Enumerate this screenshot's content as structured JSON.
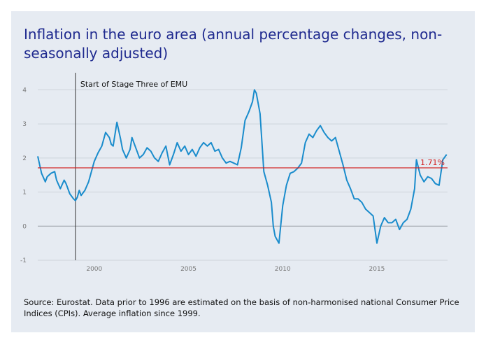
{
  "chart_data": {
    "type": "line",
    "title": "Inflation in the euro area (annual percentage changes, non-seasonally adjusted)",
    "source": "Source: Eurostat. Data prior to 1996 are estimated on the basis of non-harmonised national Consumer Price Indices (CPIs). Average inflation since 1999.",
    "xlim": [
      1997.0,
      2018.75
    ],
    "ylim": [
      -1,
      4.5
    ],
    "x_ticks": [
      2000,
      2005,
      2010,
      2015
    ],
    "x_tick_labels": [
      "2000",
      "2005",
      "2010",
      "2015"
    ],
    "y_ticks": [
      -1,
      0,
      1,
      2,
      3,
      4
    ],
    "y_tick_labels": [
      "-1",
      "0",
      "1",
      "2",
      "3",
      "4"
    ],
    "grid": true,
    "vertical_marker": {
      "x": 1999.0,
      "label": "Start of Stage Three of EMU"
    },
    "average_line": {
      "value": 1.71,
      "label": "1.71%",
      "color": "#d11a1a"
    },
    "series": [
      {
        "color": "#1a8ccc",
        "x": [
          1997.0,
          1997.2,
          1997.4,
          1997.5,
          1997.7,
          1997.9,
          1998.0,
          1998.2,
          1998.4,
          1998.5,
          1998.7,
          1998.9,
          1999.0,
          1999.1,
          1999.2,
          1999.3,
          1999.5,
          1999.7,
          1999.9,
          2000.0,
          2000.2,
          2000.4,
          2000.6,
          2000.8,
          2000.9,
          2001.0,
          2001.2,
          2001.4,
          2001.5,
          2001.7,
          2001.9,
          2002.0,
          2002.2,
          2002.4,
          2002.6,
          2002.8,
          2003.0,
          2003.2,
          2003.4,
          2003.6,
          2003.8,
          2004.0,
          2004.2,
          2004.4,
          2004.6,
          2004.8,
          2005.0,
          2005.2,
          2005.4,
          2005.6,
          2005.8,
          2006.0,
          2006.2,
          2006.4,
          2006.6,
          2006.8,
          2007.0,
          2007.2,
          2007.4,
          2007.6,
          2007.8,
          2008.0,
          2008.2,
          2008.4,
          2008.5,
          2008.6,
          2008.8,
          2009.0,
          2009.2,
          2009.4,
          2009.5,
          2009.6,
          2009.8,
          2010.0,
          2010.2,
          2010.4,
          2010.6,
          2010.8,
          2011.0,
          2011.2,
          2011.4,
          2011.6,
          2011.8,
          2012.0,
          2012.2,
          2012.4,
          2012.6,
          2012.8,
          2013.0,
          2013.2,
          2013.4,
          2013.6,
          2013.8,
          2014.0,
          2014.2,
          2014.4,
          2014.6,
          2014.8,
          2015.0,
          2015.2,
          2015.4,
          2015.6,
          2015.8,
          2016.0,
          2016.2,
          2016.4,
          2016.6,
          2016.8,
          2017.0,
          2017.1,
          2017.3,
          2017.5,
          2017.7,
          2017.9,
          2018.1,
          2018.3,
          2018.5,
          2018.7
        ],
        "values": [
          2.05,
          1.55,
          1.3,
          1.45,
          1.55,
          1.6,
          1.35,
          1.1,
          1.35,
          1.25,
          0.95,
          0.8,
          0.75,
          0.85,
          1.05,
          0.9,
          1.05,
          1.3,
          1.7,
          1.9,
          2.15,
          2.35,
          2.75,
          2.6,
          2.4,
          2.35,
          3.05,
          2.55,
          2.25,
          2.0,
          2.25,
          2.6,
          2.3,
          2.0,
          2.1,
          2.3,
          2.2,
          2.0,
          1.9,
          2.15,
          2.35,
          1.8,
          2.1,
          2.45,
          2.2,
          2.35,
          2.1,
          2.25,
          2.05,
          2.3,
          2.45,
          2.35,
          2.45,
          2.2,
          2.25,
          2.0,
          1.85,
          1.9,
          1.85,
          1.8,
          2.3,
          3.1,
          3.35,
          3.65,
          4.0,
          3.9,
          3.3,
          1.6,
          1.2,
          0.7,
          0.0,
          -0.3,
          -0.5,
          0.6,
          1.2,
          1.55,
          1.6,
          1.7,
          1.85,
          2.45,
          2.7,
          2.6,
          2.8,
          2.95,
          2.75,
          2.6,
          2.5,
          2.6,
          2.2,
          1.8,
          1.35,
          1.1,
          0.8,
          0.8,
          0.7,
          0.5,
          0.4,
          0.3,
          -0.5,
          0.0,
          0.25,
          0.1,
          0.1,
          0.2,
          -0.1,
          0.1,
          0.2,
          0.5,
          1.1,
          1.95,
          1.5,
          1.3,
          1.45,
          1.4,
          1.25,
          1.2,
          1.95,
          2.1
        ]
      }
    ]
  }
}
